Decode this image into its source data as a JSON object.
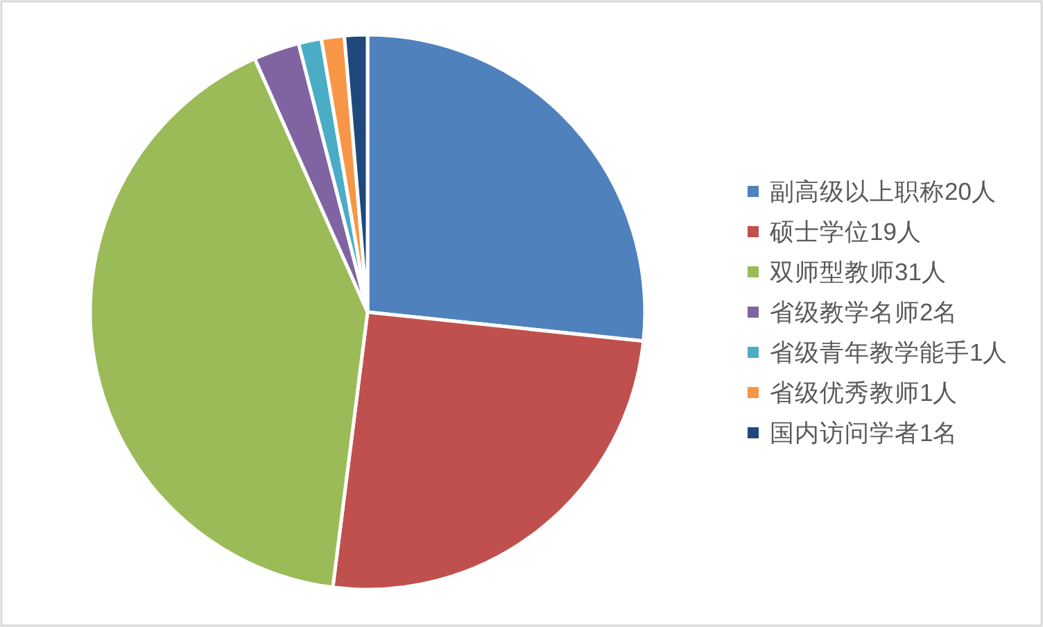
{
  "chart_data": {
    "type": "pie",
    "categories": [
      "副高级以上职称20人",
      "硕士学位19人",
      "双师型教师31人",
      "省级教学名师2名",
      "省级青年教学能手1人",
      "省级优秀教师1人",
      "国内访问学者1名"
    ],
    "values": [
      20,
      19,
      31,
      2,
      1,
      1,
      1
    ],
    "colors": [
      "#4f81bd",
      "#c0504d",
      "#9bbb59",
      "#8064a2",
      "#4bacc6",
      "#f79646",
      "#1f497d"
    ],
    "legend": "right"
  }
}
